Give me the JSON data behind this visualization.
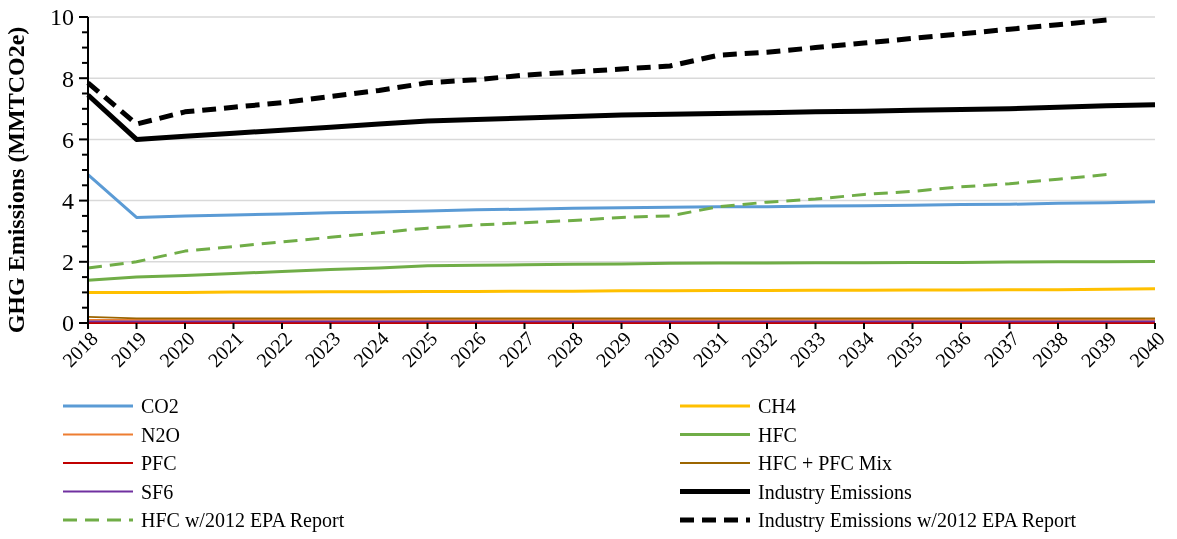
{
  "chart_data": {
    "type": "line",
    "ylabel": "GHG Emissions (MMTCO2e)",
    "categories": [
      "2018",
      "2019",
      "2020",
      "2021",
      "2022",
      "2023",
      "2024",
      "2025",
      "2026",
      "2027",
      "2028",
      "2029",
      "2030",
      "2031",
      "2032",
      "2033",
      "2034",
      "2035",
      "2036",
      "2037",
      "2038",
      "2039",
      "2040"
    ],
    "ylim": [
      0,
      10
    ],
    "yticks": [
      0,
      {
        "value": 0.5,
        "label": null
      },
      {
        "value": 1,
        "label": null
      },
      {
        "value": 1.5,
        "label": null
      },
      2,
      {
        "value": 2.5,
        "label": null
      },
      {
        "value": 3,
        "label": null
      },
      {
        "value": 3.5,
        "label": null
      },
      4,
      {
        "value": 4.5,
        "label": null
      },
      {
        "value": 5,
        "label": null
      },
      {
        "value": 5.5,
        "label": null
      },
      6,
      {
        "value": 6.5,
        "label": null
      },
      {
        "value": 7,
        "label": null
      },
      {
        "value": 7.5,
        "label": null
      },
      8,
      {
        "value": 8.5,
        "label": null
      },
      {
        "value": 9,
        "label": null
      },
      {
        "value": 9.5,
        "label": null
      },
      10
    ],
    "grid": "y",
    "legend": "bottom",
    "series": [
      {
        "name": "CO2",
        "color": "#5b9bd5",
        "values": [
          4.85,
          3.45,
          3.5,
          3.53,
          3.56,
          3.6,
          3.63,
          3.66,
          3.7,
          3.72,
          3.75,
          3.77,
          3.78,
          3.8,
          3.8,
          3.82,
          3.83,
          3.85,
          3.87,
          3.88,
          3.91,
          3.93,
          3.96
        ]
      },
      {
        "name": "CH4",
        "color": "#ffc000",
        "values": [
          1.0,
          1.0,
          1.0,
          1.01,
          1.01,
          1.02,
          1.02,
          1.03,
          1.03,
          1.04,
          1.04,
          1.05,
          1.05,
          1.06,
          1.06,
          1.07,
          1.07,
          1.08,
          1.08,
          1.09,
          1.09,
          1.1,
          1.12
        ]
      },
      {
        "name": "N2O",
        "color": "#ed7d31",
        "values": [
          0.1,
          0.1,
          0.1,
          0.1,
          0.1,
          0.1,
          0.1,
          0.1,
          0.1,
          0.1,
          0.1,
          0.1,
          0.1,
          0.1,
          0.1,
          0.1,
          0.1,
          0.1,
          0.1,
          0.1,
          0.1,
          0.1,
          0.1
        ]
      },
      {
        "name": "HFC",
        "color": "#70ad47",
        "values": [
          1.4,
          1.5,
          1.55,
          1.62,
          1.68,
          1.75,
          1.8,
          1.87,
          1.89,
          1.9,
          1.92,
          1.93,
          1.95,
          1.96,
          1.96,
          1.97,
          1.97,
          1.98,
          1.98,
          1.99,
          2.0,
          2.0,
          2.01
        ]
      },
      {
        "name": "PFC",
        "color": "#c00000",
        "values": [
          0,
          0,
          0,
          0,
          0,
          0,
          0,
          0,
          0,
          0,
          0,
          0,
          0,
          0,
          0,
          0,
          0,
          0,
          0,
          0,
          0,
          0,
          0
        ]
      },
      {
        "name": "HFC + PFC Mix",
        "color": "#9c6500",
        "values": [
          0.2,
          0.15,
          0.15,
          0.15,
          0.15,
          0.15,
          0.15,
          0.15,
          0.15,
          0.15,
          0.15,
          0.15,
          0.15,
          0.15,
          0.15,
          0.15,
          0.15,
          0.15,
          0.15,
          0.15,
          0.15,
          0.15,
          0.15
        ]
      },
      {
        "name": "SF6",
        "color": "#7030a0",
        "values": [
          0.05,
          0.05,
          0.05,
          0.05,
          0.05,
          0.05,
          0.05,
          0.05,
          0.05,
          0.05,
          0.05,
          0.05,
          0.05,
          0.05,
          0.05,
          0.05,
          0.05,
          0.05,
          0.05,
          0.05,
          0.05,
          0.05,
          0.05
        ]
      },
      {
        "name": "Industry Emissions",
        "color": "#000000",
        "values": [
          7.45,
          6.0,
          6.1,
          6.2,
          6.3,
          6.4,
          6.5,
          6.6,
          6.65,
          6.7,
          6.75,
          6.8,
          6.82,
          6.85,
          6.87,
          6.9,
          6.92,
          6.95,
          6.98,
          7.0,
          7.05,
          7.1,
          7.13
        ]
      },
      {
        "name": "HFC w/2012 EPA Report",
        "color": "#70ad47",
        "line_style": "dashed",
        "values": [
          1.8,
          2.0,
          2.35,
          2.5,
          2.65,
          2.8,
          2.95,
          3.1,
          3.2,
          3.28,
          3.35,
          3.45,
          3.5,
          3.8,
          3.95,
          4.05,
          4.2,
          4.3,
          4.45,
          4.55,
          4.7,
          4.85,
          null
        ]
      },
      {
        "name": "Industry Emissions w/2012 EPA Report",
        "color": "#000000",
        "line_style": "dashed",
        "values": [
          7.85,
          6.5,
          6.9,
          7.05,
          7.2,
          7.4,
          7.6,
          7.85,
          7.95,
          8.1,
          8.2,
          8.3,
          8.4,
          8.75,
          8.85,
          9.0,
          9.15,
          9.3,
          9.45,
          9.6,
          9.75,
          9.9,
          null
        ]
      }
    ]
  }
}
